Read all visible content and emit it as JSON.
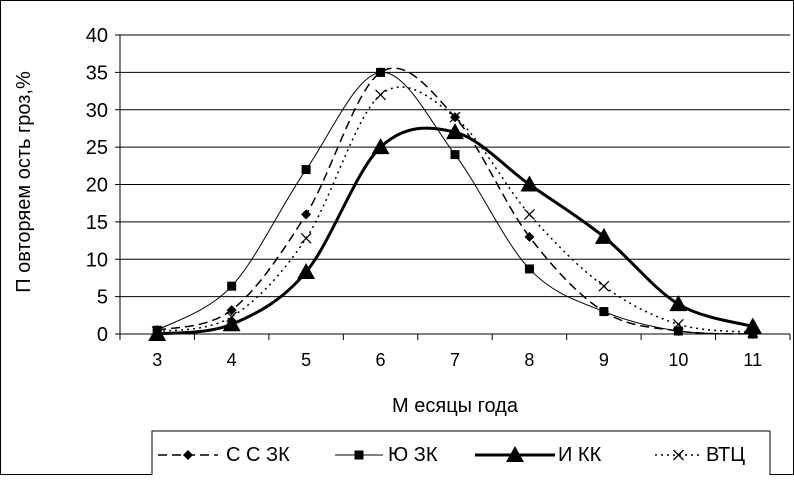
{
  "chart_data": {
    "type": "line",
    "x": [
      3,
      4,
      5,
      6,
      7,
      8,
      9,
      10,
      11
    ],
    "xlabel": "М есяцы года",
    "ylabel": "П овторяем ость гроз,%",
    "xlim": [
      2.5,
      11.5
    ],
    "ylim": [
      0,
      40
    ],
    "yticks": [
      0,
      5,
      10,
      15,
      20,
      25,
      30,
      35,
      40
    ],
    "grid": true,
    "legend_position": "bottom",
    "series": [
      {
        "name": "С С ЗК",
        "marker": "diamond",
        "line": "dashed",
        "values": [
          0.5,
          3.2,
          16,
          35,
          29,
          13,
          3,
          0.4,
          0
        ]
      },
      {
        "name": "Ю ЗК",
        "marker": "square",
        "line": "solid-thin",
        "values": [
          0.5,
          6.4,
          22,
          35,
          24,
          8.7,
          3,
          0.4,
          0
        ]
      },
      {
        "name": "И КК",
        "marker": "triangle",
        "line": "solid-thick",
        "values": [
          0,
          1.3,
          8.3,
          25,
          27,
          20,
          13,
          4,
          1
        ]
      },
      {
        "name": "ВТЦ",
        "marker": "cross",
        "line": "dotted",
        "values": [
          0.3,
          2.3,
          12.8,
          32,
          29,
          16,
          6.4,
          1.3,
          0.2
        ]
      }
    ]
  }
}
